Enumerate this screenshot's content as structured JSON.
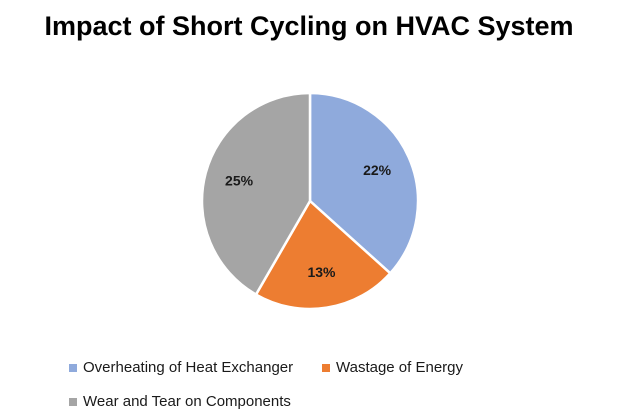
{
  "chart_data": {
    "type": "pie",
    "title": "Impact of Short Cycling on HVAC System",
    "categories": [
      "Overheating of Heat Exchanger",
      "Wastage of Energy",
      "Wear and Tear on Components"
    ],
    "values": [
      22,
      13,
      25
    ],
    "labels": [
      "22%",
      "13%",
      "25%"
    ],
    "colors": [
      "#8faadc",
      "#ed7d31",
      "#a5a5a5"
    ],
    "legend_position": "bottom"
  }
}
